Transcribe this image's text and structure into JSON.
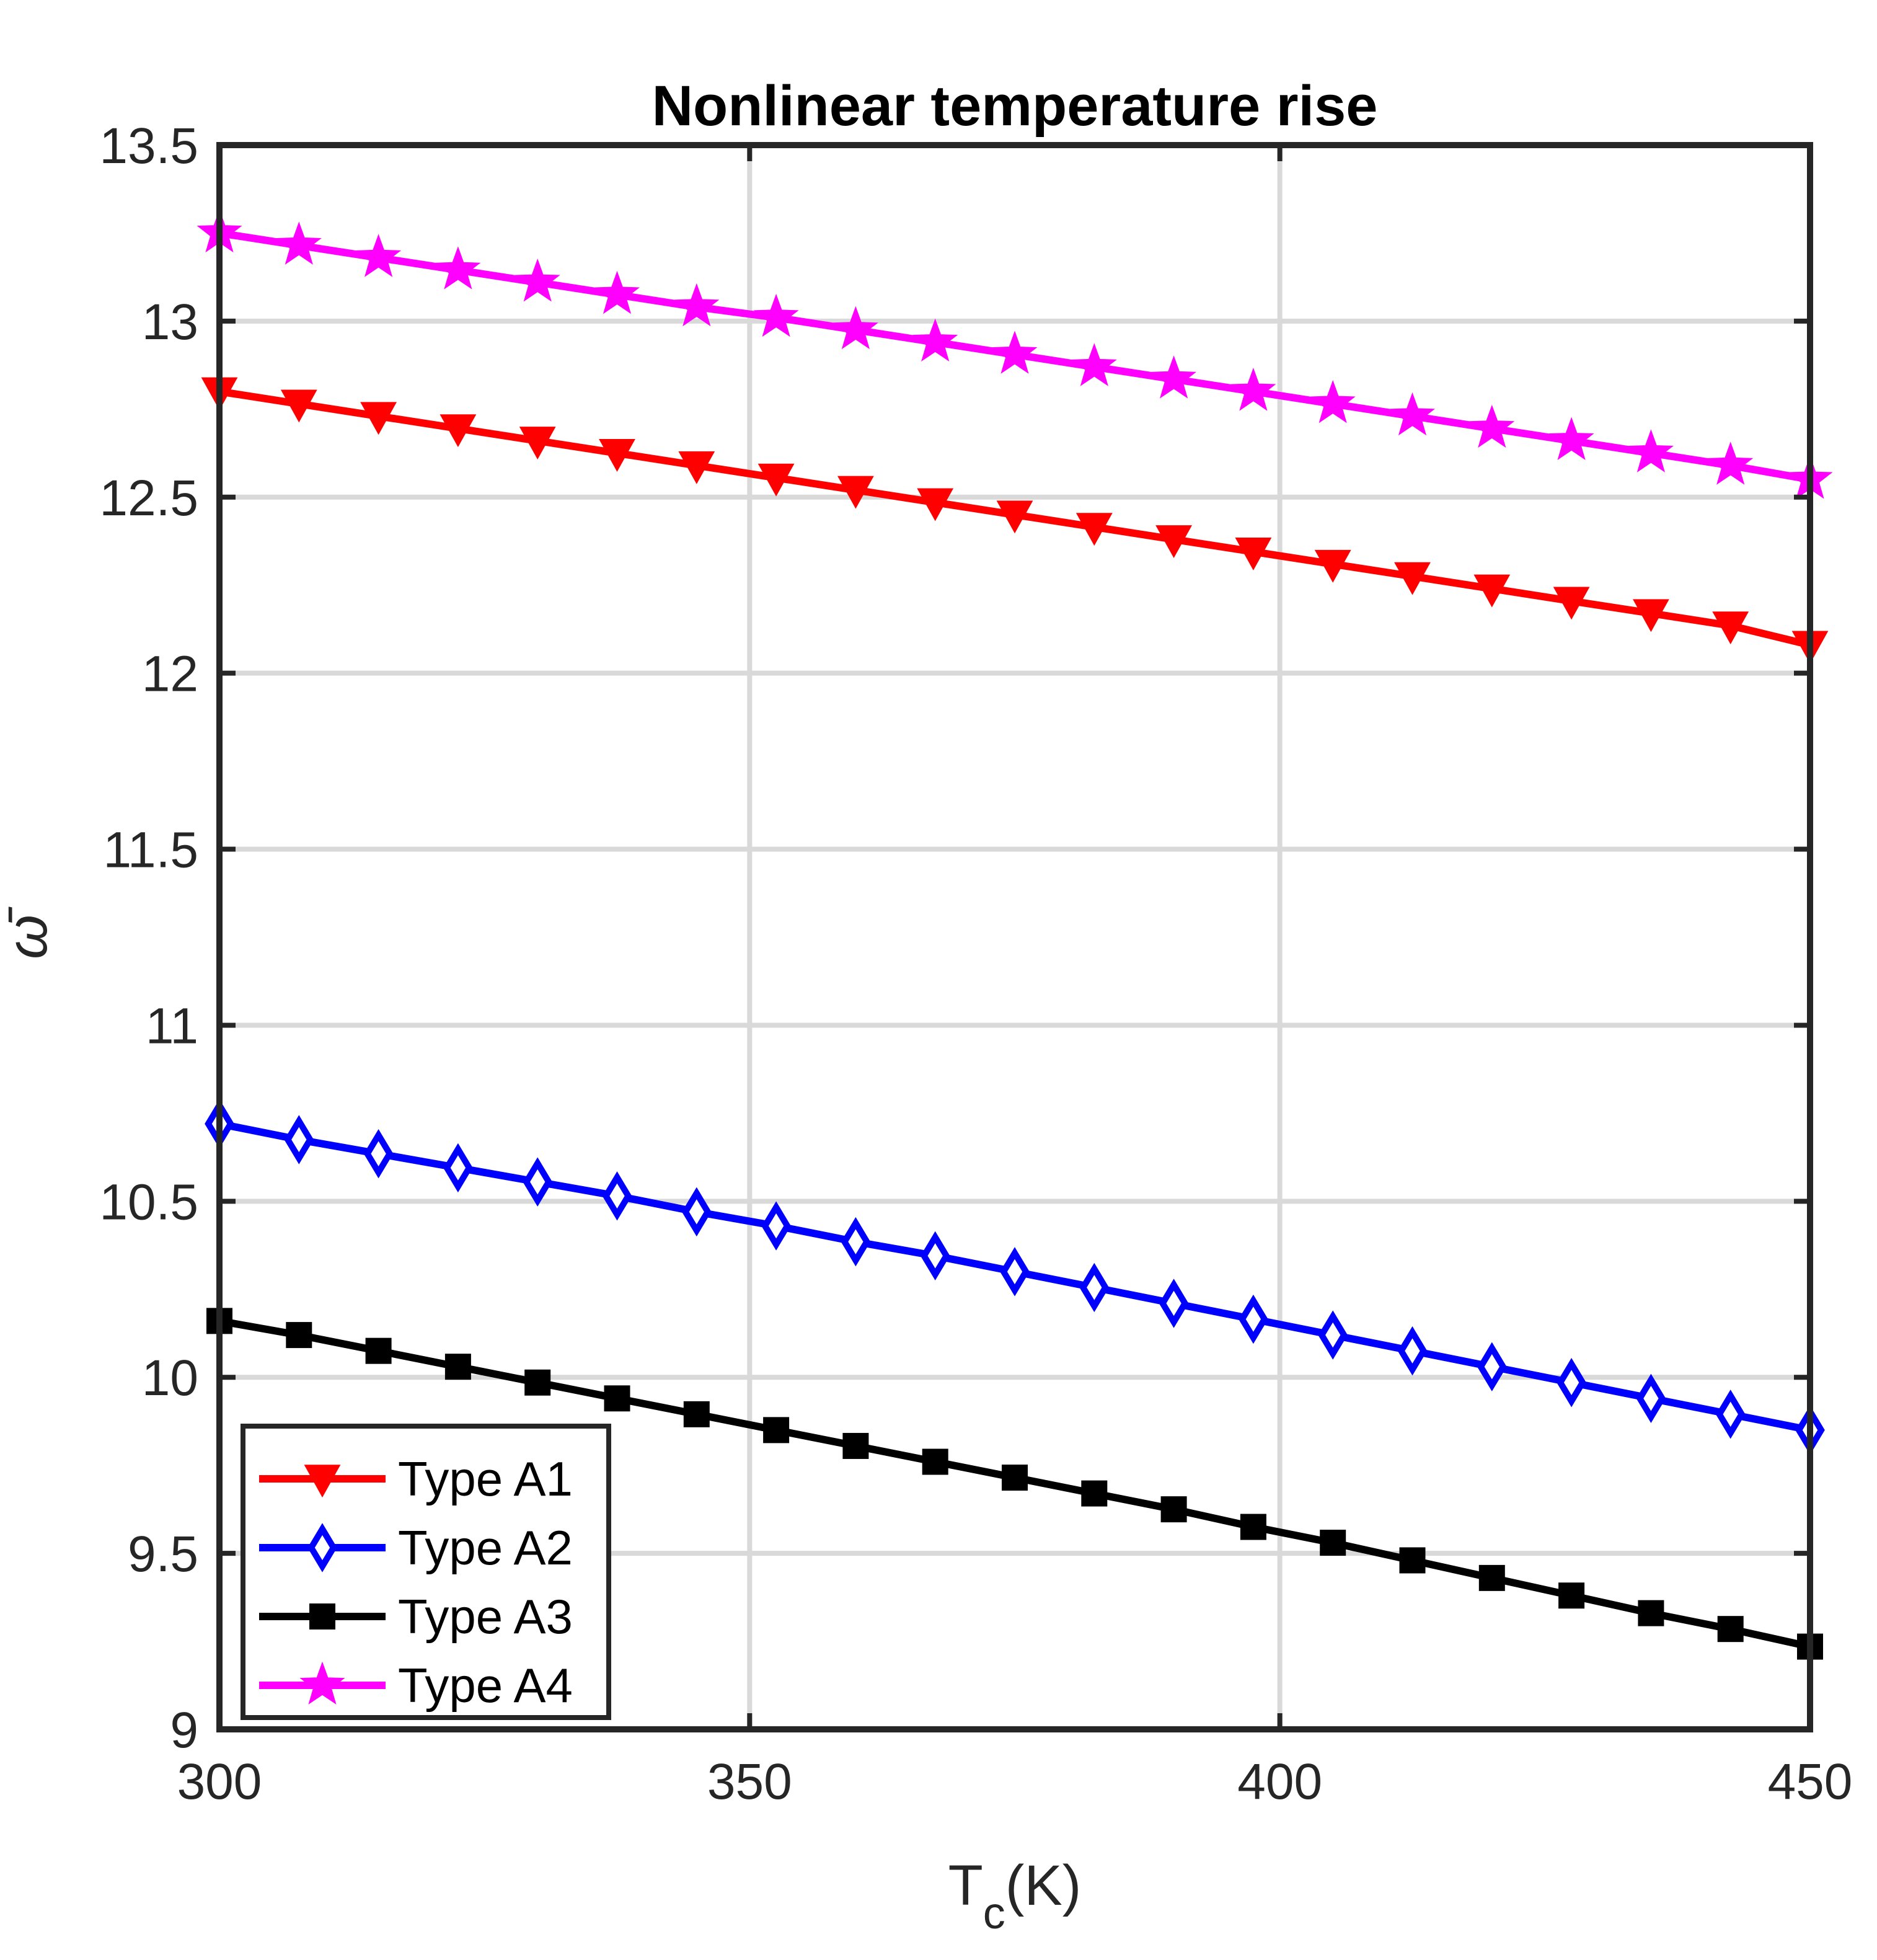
{
  "chart_data": {
    "type": "line",
    "title": "Nonlinear temperature rise",
    "xlabel": {
      "main": "T",
      "sub": "c",
      "suffix": "(K)"
    },
    "ylabel": "ω̄",
    "xlim": [
      300,
      450
    ],
    "ylim": [
      9,
      13.5
    ],
    "xticks": [
      300,
      350,
      400,
      450
    ],
    "xtick_labels": [
      "300",
      "350",
      "400",
      "450"
    ],
    "yticks": [
      9,
      9.5,
      10,
      10.5,
      11,
      11.5,
      12,
      12.5,
      13,
      13.5
    ],
    "ytick_labels": [
      "9",
      "9.5",
      "10",
      "10.5",
      "11",
      "11.5",
      "12",
      "12.5",
      "13",
      "13.5"
    ],
    "grid": true,
    "legend_position": "bottom-left",
    "x": [
      300,
      307.5,
      315,
      322.5,
      330,
      337.5,
      345,
      352.5,
      360,
      367.5,
      375,
      382.5,
      390,
      397.5,
      405,
      412.5,
      420,
      427.5,
      435,
      442.5,
      450
    ],
    "series": [
      {
        "name": "Type A1",
        "color": "#ff0000",
        "marker": "triangle-down",
        "values": [
          12.8,
          12.765,
          12.73,
          12.695,
          12.66,
          12.625,
          12.59,
          12.555,
          12.52,
          12.485,
          12.45,
          12.415,
          12.38,
          12.345,
          12.31,
          12.275,
          12.24,
          12.205,
          12.17,
          12.135,
          12.08
        ]
      },
      {
        "name": "Type A2",
        "color": "#0000ff",
        "marker": "diamond",
        "values": [
          10.72,
          10.675,
          10.635,
          10.595,
          10.555,
          10.515,
          10.47,
          10.43,
          10.385,
          10.345,
          10.3,
          10.255,
          10.21,
          10.165,
          10.12,
          10.075,
          10.03,
          9.985,
          9.94,
          9.895,
          9.85
        ]
      },
      {
        "name": "Type A3",
        "color": "#000000",
        "marker": "square",
        "values": [
          10.16,
          10.12,
          10.075,
          10.03,
          9.985,
          9.94,
          9.895,
          9.85,
          9.805,
          9.76,
          9.715,
          9.67,
          9.625,
          9.575,
          9.53,
          9.48,
          9.43,
          9.38,
          9.33,
          9.285,
          9.235
        ]
      },
      {
        "name": "Type A4",
        "color": "#ff00ff",
        "marker": "star",
        "values": [
          13.25,
          13.215,
          13.18,
          13.145,
          13.11,
          13.075,
          13.04,
          13.01,
          12.975,
          12.94,
          12.905,
          12.87,
          12.835,
          12.8,
          12.765,
          12.73,
          12.695,
          12.66,
          12.625,
          12.59,
          12.55
        ]
      }
    ]
  }
}
